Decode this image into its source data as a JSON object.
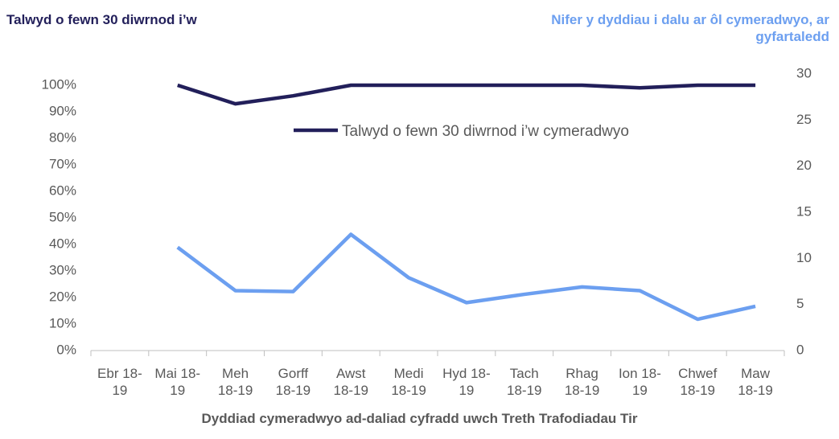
{
  "chart_data": {
    "type": "line",
    "y_label": "Talwyd o fewn 30 diwrnod i’w",
    "y2_label": "Nifer y dyddiau i dalu ar ôl cymeradwyo, ar gyfartaledd",
    "x_label": "Dyddiad cymeradwyo ad-daliad cyfradd uwch Treth Trafodiadau Tir",
    "categories": [
      "Ebr 18-19",
      "Mai 18-19",
      "Meh 18-19",
      "Gorff 18-19",
      "Awst 18-19",
      "Medi 18-19",
      "Hyd 18-19",
      "Tach 18-19",
      "Rhag 18-19",
      "Ion 18-19",
      "Chwef 18-19",
      "Maw 18-19"
    ],
    "series": [
      {
        "name": "Talwyd o fewn 30 diwrnod i’w cymeradwyo",
        "color": "#221f5a",
        "values": [
          null,
          100,
          93,
          96,
          100,
          100,
          100,
          100,
          100,
          99,
          100,
          100
        ]
      },
      {
        "color": "#6c9ff0",
        "axis": "y2",
        "values": [
          null,
          11.2,
          6.5,
          6.4,
          12.6,
          7.9,
          5.2,
          6.1,
          6.9,
          6.5,
          3.4,
          4.8
        ]
      }
    ],
    "ylim": [
      0,
      100
    ],
    "yticks": [
      {
        "value": 0,
        "label": "0%"
      },
      {
        "value": 10,
        "label": "10%"
      },
      {
        "value": 20,
        "label": "20%"
      },
      {
        "value": 30,
        "label": "30%"
      },
      {
        "value": 40,
        "label": "40%"
      },
      {
        "value": 50,
        "label": "50%"
      },
      {
        "value": 60,
        "label": "60%"
      },
      {
        "value": 70,
        "label": "70%"
      },
      {
        "value": 80,
        "label": "80%"
      },
      {
        "value": 90,
        "label": "90%"
      },
      {
        "value": 100,
        "label": "100%"
      }
    ],
    "y2lim": [
      0,
      30
    ],
    "y2ticks": [
      0,
      5,
      10,
      15,
      20,
      25,
      30
    ],
    "grid": false
  }
}
